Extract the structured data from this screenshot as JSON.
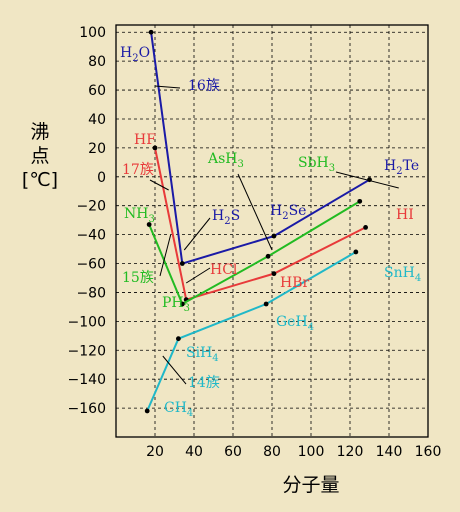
{
  "chart_data": {
    "type": "line",
    "xlabel": "分子量",
    "ylabel_lines": [
      "沸",
      "点",
      "[℃]"
    ],
    "xlim": [
      0,
      160
    ],
    "ylim": [
      -180,
      105
    ],
    "xticks": [
      20,
      40,
      60,
      80,
      100,
      120,
      140,
      160
    ],
    "yticks": [
      100,
      80,
      60,
      40,
      20,
      0,
      -20,
      -40,
      -60,
      -80,
      -100,
      -120,
      -140,
      -160
    ],
    "grid": true,
    "series": [
      {
        "name": "16族",
        "color": "#1a1aa6",
        "points": [
          {
            "x": 18,
            "y": 100,
            "label": "H2O"
          },
          {
            "x": 34,
            "y": -60,
            "label": "H2S"
          },
          {
            "x": 81,
            "y": -41,
            "label": "H2Se"
          },
          {
            "x": 130,
            "y": -2,
            "label": "H2Te"
          }
        ]
      },
      {
        "name": "17族",
        "color": "#e83a3a",
        "points": [
          {
            "x": 20,
            "y": 20,
            "label": "HF"
          },
          {
            "x": 36,
            "y": -85,
            "label": "HCl"
          },
          {
            "x": 81,
            "y": -67,
            "label": "HBr"
          },
          {
            "x": 128,
            "y": -35,
            "label": "HI"
          }
        ]
      },
      {
        "name": "15族",
        "color": "#22bb22",
        "points": [
          {
            "x": 17,
            "y": -33,
            "label": "NH3"
          },
          {
            "x": 34,
            "y": -88,
            "label": "PH3"
          },
          {
            "x": 78,
            "y": -55,
            "label": "AsH3"
          },
          {
            "x": 125,
            "y": -17,
            "label": "SbH3"
          }
        ]
      },
      {
        "name": "14族",
        "color": "#20b8c8",
        "points": [
          {
            "x": 16,
            "y": -162,
            "label": "CH4"
          },
          {
            "x": 32,
            "y": -112,
            "label": "SiH4"
          },
          {
            "x": 77,
            "y": -88,
            "label": "GeH4"
          },
          {
            "x": 123,
            "y": -52,
            "label": "SnH4"
          }
        ]
      }
    ]
  }
}
